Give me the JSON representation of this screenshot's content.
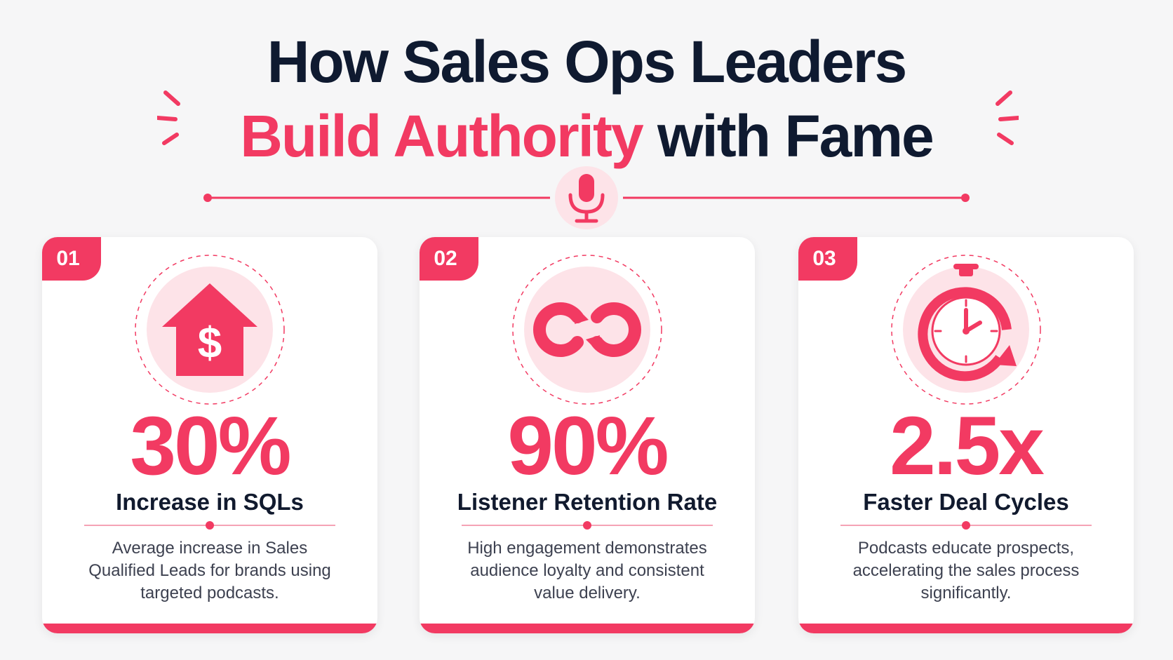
{
  "title": {
    "line1": "How Sales Ops Leaders",
    "line2_accent": "Build Authority",
    "line2_rest": "with Fame"
  },
  "colors": {
    "accent": "#f23a62",
    "dark": "#0f1a30",
    "text": "#3d4150"
  },
  "divider_icon": "microphone-icon",
  "cards": [
    {
      "number": "01",
      "icon": "house-dollar-icon",
      "stat": "30%",
      "label": "Increase in SQLs",
      "description": "Average increase in Sales Qualified Leads for brands using targeted podcasts."
    },
    {
      "number": "02",
      "icon": "infinity-loop-icon",
      "stat": "90%",
      "label": "Listener Retention Rate",
      "description": "High engagement demonstrates audience loyalty and consistent value delivery."
    },
    {
      "number": "03",
      "icon": "stopwatch-icon",
      "stat": "2.5x",
      "label": "Faster Deal Cycles",
      "description": "Podcasts educate prospects, accelerating the sales process significantly."
    }
  ]
}
